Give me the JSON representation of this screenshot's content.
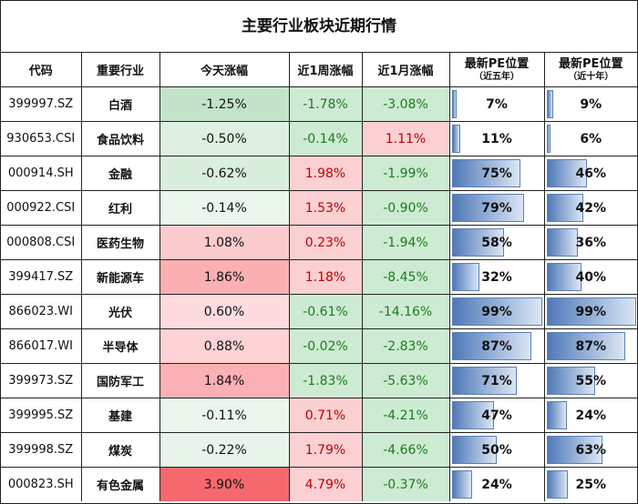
{
  "title": "主要行业板块近期行情",
  "headers": {
    "code": "代码",
    "sector": "重要行业",
    "today": "今天涨幅",
    "week": "近1周涨幅",
    "month": "近1月涨幅",
    "pe5_main": "最新PE位置",
    "pe5_sub": "（近五年）",
    "pe10_main": "最新PE位置",
    "pe10_sub": "（近十年）"
  },
  "rows": [
    {
      "code": "399997.SZ",
      "sector": "白酒",
      "today": "-1.25%",
      "week": "-1.78%",
      "month": "-3.08%",
      "pe5": "7%",
      "pe10": "9%"
    },
    {
      "code": "930653.CSI",
      "sector": "食品饮料",
      "today": "-0.50%",
      "week": "-0.14%",
      "month": "1.11%",
      "pe5": "11%",
      "pe10": "6%"
    },
    {
      "code": "000914.SH",
      "sector": "金融",
      "today": "-0.62%",
      "week": "1.98%",
      "month": "-1.99%",
      "pe5": "75%",
      "pe10": "46%"
    },
    {
      "code": "000922.CSI",
      "sector": "红利",
      "today": "-0.14%",
      "week": "1.53%",
      "month": "-0.90%",
      "pe5": "79%",
      "pe10": "42%"
    },
    {
      "code": "000808.CSI",
      "sector": "医药生物",
      "today": "1.08%",
      "week": "0.23%",
      "month": "-1.94%",
      "pe5": "58%",
      "pe10": "36%"
    },
    {
      "code": "399417.SZ",
      "sector": "新能源车",
      "today": "1.86%",
      "week": "1.18%",
      "month": "-8.45%",
      "pe5": "32%",
      "pe10": "40%"
    },
    {
      "code": "866023.WI",
      "sector": "光伏",
      "today": "0.60%",
      "week": "-0.61%",
      "month": "-14.16%",
      "pe5": "99%",
      "pe10": "99%"
    },
    {
      "code": "866017.WI",
      "sector": "半导体",
      "today": "0.88%",
      "week": "-0.02%",
      "month": "-2.83%",
      "pe5": "87%",
      "pe10": "87%"
    },
    {
      "code": "399973.SZ",
      "sector": "国防军工",
      "today": "1.84%",
      "week": "-1.83%",
      "month": "-5.63%",
      "pe5": "71%",
      "pe10": "55%"
    },
    {
      "code": "399995.SZ",
      "sector": "基建",
      "today": "-0.11%",
      "week": "0.71%",
      "month": "-4.21%",
      "pe5": "47%",
      "pe10": "24%"
    },
    {
      "code": "399998.SZ",
      "sector": "煤炭",
      "today": "-0.22%",
      "week": "1.79%",
      "month": "-4.66%",
      "pe5": "50%",
      "pe10": "63%"
    },
    {
      "code": "000823.SH",
      "sector": "有色金属",
      "today": "3.90%",
      "week": "4.79%",
      "month": "-0.37%",
      "pe5": "24%",
      "pe10": "25%"
    }
  ],
  "colors": {
    "pos_text": "#c00000",
    "neg_text": "#1f7a1f",
    "bar": "#4f79b8"
  }
}
